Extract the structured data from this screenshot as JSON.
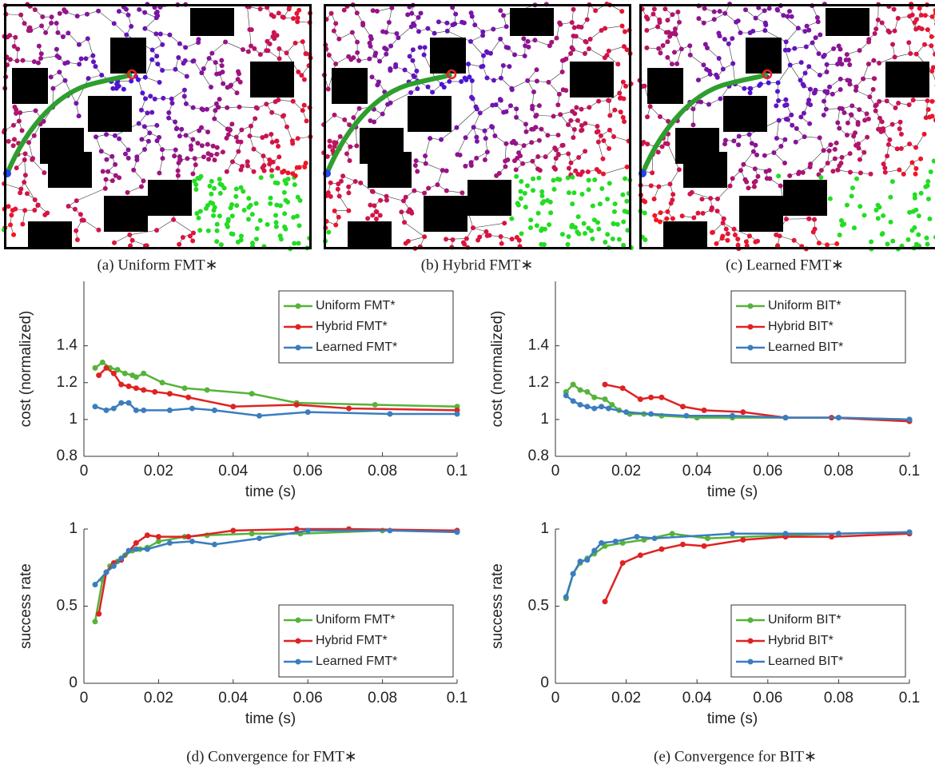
{
  "captions": [
    "(a) Uniform FMT∗",
    "(b) Hybrid FMT∗",
    "(c) Learned FMT∗",
    "(d) Convergence for FMT∗",
    "(e) Convergence for BIT∗"
  ],
  "chart_data": [
    {
      "type": "line",
      "xlabel": "time (s)",
      "ylabel": "cost (normalized)",
      "xlim": [
        0,
        0.1
      ],
      "xticks": [
        0,
        0.02,
        0.04,
        0.06,
        0.08,
        0.1
      ],
      "ylim": [
        0.8,
        1.75
      ],
      "yticks": [
        0.8,
        1,
        1.2,
        1.4
      ],
      "legend": "northeast",
      "series": [
        {
          "name": "Uniform FMT*",
          "color": "#56b33a",
          "x": [
            0.003,
            0.005,
            0.007,
            0.009,
            0.011,
            0.013,
            0.014,
            0.016,
            0.021,
            0.027,
            0.033,
            0.045,
            0.057,
            0.078,
            0.1
          ],
          "values": [
            1.28,
            1.31,
            1.28,
            1.27,
            1.25,
            1.24,
            1.23,
            1.25,
            1.2,
            1.17,
            1.16,
            1.14,
            1.09,
            1.08,
            1.07
          ]
        },
        {
          "name": "Hybrid FMT*",
          "color": "#e02222",
          "x": [
            0.004,
            0.006,
            0.008,
            0.01,
            0.012,
            0.014,
            0.016,
            0.019,
            0.023,
            0.028,
            0.04,
            0.057,
            0.071,
            0.1
          ],
          "values": [
            1.24,
            1.28,
            1.25,
            1.19,
            1.18,
            1.17,
            1.16,
            1.15,
            1.14,
            1.12,
            1.07,
            1.08,
            1.06,
            1.05
          ]
        },
        {
          "name": "Learned FMT*",
          "color": "#3b7dbf",
          "x": [
            0.003,
            0.006,
            0.008,
            0.01,
            0.012,
            0.014,
            0.016,
            0.023,
            0.029,
            0.035,
            0.047,
            0.06,
            0.082,
            0.1
          ],
          "values": [
            1.07,
            1.05,
            1.06,
            1.09,
            1.09,
            1.05,
            1.05,
            1.05,
            1.06,
            1.05,
            1.02,
            1.04,
            1.03,
            1.03
          ]
        }
      ]
    },
    {
      "type": "line",
      "xlabel": "time (s)",
      "ylabel": "cost (normalized)",
      "xlim": [
        0,
        0.1
      ],
      "xticks": [
        0,
        0.02,
        0.04,
        0.06,
        0.08,
        0.1
      ],
      "ylim": [
        0.8,
        1.75
      ],
      "yticks": [
        0.8,
        1,
        1.2,
        1.4
      ],
      "legend": "northeast",
      "series": [
        {
          "name": "Uniform BIT*",
          "color": "#56b33a",
          "x": [
            0.003,
            0.005,
            0.007,
            0.009,
            0.011,
            0.014,
            0.016,
            0.018,
            0.021,
            0.025,
            0.03,
            0.04,
            0.05,
            0.065,
            0.08,
            0.1
          ],
          "values": [
            1.15,
            1.19,
            1.16,
            1.15,
            1.12,
            1.11,
            1.08,
            1.05,
            1.03,
            1.03,
            1.02,
            1.01,
            1.01,
            1.01,
            1.01,
            1.0
          ]
        },
        {
          "name": "Hybrid BIT*",
          "color": "#e02222",
          "x": [
            0.014,
            0.019,
            0.024,
            0.027,
            0.03,
            0.036,
            0.042,
            0.053,
            0.065,
            0.078,
            0.1
          ],
          "values": [
            1.19,
            1.17,
            1.11,
            1.12,
            1.12,
            1.07,
            1.05,
            1.04,
            1.01,
            1.01,
            0.99
          ]
        },
        {
          "name": "Learned BIT*",
          "color": "#3b7dbf",
          "x": [
            0.003,
            0.005,
            0.007,
            0.009,
            0.011,
            0.013,
            0.015,
            0.02,
            0.027,
            0.037,
            0.05,
            0.065,
            0.08,
            0.1
          ],
          "values": [
            1.13,
            1.1,
            1.08,
            1.07,
            1.06,
            1.07,
            1.06,
            1.04,
            1.03,
            1.02,
            1.02,
            1.01,
            1.01,
            1.0
          ]
        }
      ]
    },
    {
      "type": "line",
      "xlabel": "time (s)",
      "ylabel": "success rate",
      "xlim": [
        0,
        0.1
      ],
      "xticks": [
        0,
        0.02,
        0.04,
        0.06,
        0.08,
        0.1
      ],
      "ylim": [
        0,
        1
      ],
      "yticks": [
        0,
        0.5,
        1
      ],
      "legend": "southeast",
      "series": [
        {
          "name": "Uniform FMT*",
          "color": "#56b33a",
          "x": [
            0.003,
            0.005,
            0.007,
            0.009,
            0.011,
            0.013,
            0.015,
            0.017,
            0.02,
            0.027,
            0.033,
            0.045,
            0.058,
            0.08,
            0.1
          ],
          "values": [
            0.4,
            0.67,
            0.76,
            0.79,
            0.83,
            0.86,
            0.87,
            0.88,
            0.92,
            0.95,
            0.96,
            0.97,
            0.97,
            0.99,
            0.99
          ]
        },
        {
          "name": "Hybrid FMT*",
          "color": "#e02222",
          "x": [
            0.004,
            0.006,
            0.008,
            0.01,
            0.014,
            0.017,
            0.02,
            0.028,
            0.04,
            0.057,
            0.071,
            0.1
          ],
          "values": [
            0.45,
            0.72,
            0.78,
            0.8,
            0.91,
            0.96,
            0.95,
            0.95,
            0.99,
            1.0,
            1.0,
            0.99
          ]
        },
        {
          "name": "Learned FMT*",
          "color": "#3b7dbf",
          "x": [
            0.003,
            0.006,
            0.008,
            0.01,
            0.012,
            0.014,
            0.017,
            0.023,
            0.029,
            0.035,
            0.047,
            0.06,
            0.082,
            0.1
          ],
          "values": [
            0.64,
            0.72,
            0.76,
            0.81,
            0.86,
            0.87,
            0.87,
            0.91,
            0.92,
            0.9,
            0.94,
            0.99,
            0.99,
            0.98
          ]
        }
      ]
    },
    {
      "type": "line",
      "xlabel": "time (s)",
      "ylabel": "success rate",
      "xlim": [
        0,
        0.1
      ],
      "xticks": [
        0,
        0.02,
        0.04,
        0.06,
        0.08,
        0.1
      ],
      "ylim": [
        0,
        1
      ],
      "yticks": [
        0,
        0.5,
        1
      ],
      "legend": "southeast",
      "series": [
        {
          "name": "Uniform BIT*",
          "color": "#56b33a",
          "x": [
            0.003,
            0.005,
            0.007,
            0.009,
            0.011,
            0.014,
            0.019,
            0.025,
            0.033,
            0.043,
            0.065,
            0.08,
            0.1
          ],
          "values": [
            0.55,
            0.71,
            0.78,
            0.81,
            0.84,
            0.89,
            0.91,
            0.93,
            0.97,
            0.94,
            0.96,
            0.97,
            0.98
          ]
        },
        {
          "name": "Hybrid BIT*",
          "color": "#e02222",
          "x": [
            0.014,
            0.019,
            0.024,
            0.03,
            0.036,
            0.042,
            0.053,
            0.065,
            0.078,
            0.1
          ],
          "values": [
            0.53,
            0.78,
            0.83,
            0.87,
            0.9,
            0.89,
            0.93,
            0.95,
            0.95,
            0.97
          ]
        },
        {
          "name": "Learned BIT*",
          "color": "#3b7dbf",
          "x": [
            0.003,
            0.005,
            0.007,
            0.009,
            0.011,
            0.013,
            0.017,
            0.023,
            0.028,
            0.05,
            0.065,
            0.08,
            0.1
          ],
          "values": [
            0.56,
            0.71,
            0.79,
            0.8,
            0.86,
            0.91,
            0.92,
            0.95,
            0.94,
            0.97,
            0.97,
            0.97,
            0.98
          ]
        }
      ]
    }
  ]
}
